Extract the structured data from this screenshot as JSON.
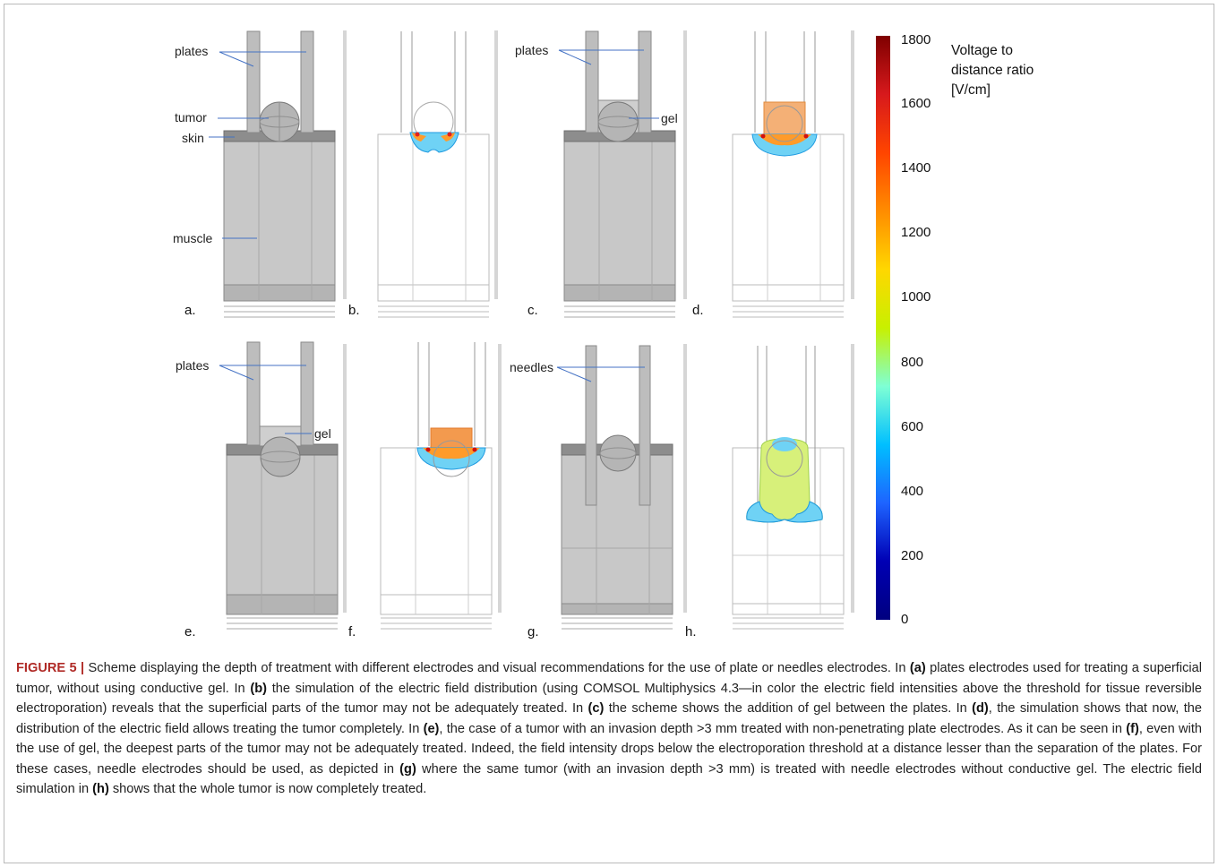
{
  "panels": {
    "a": {
      "letter": "a.",
      "labels": {
        "plates": "plates",
        "tumor": "tumor",
        "skin": "skin",
        "muscle": "muscle"
      }
    },
    "b": {
      "letter": "b."
    },
    "c": {
      "letter": "c.",
      "labels": {
        "plates": "plates",
        "gel": "gel"
      }
    },
    "d": {
      "letter": "d."
    },
    "e": {
      "letter": "e.",
      "labels": {
        "plates": "plates",
        "gel": "gel"
      }
    },
    "f": {
      "letter": "f."
    },
    "g": {
      "letter": "g.",
      "labels": {
        "needles": "needles"
      }
    },
    "h": {
      "letter": "h."
    }
  },
  "colorbar": {
    "title_lines": [
      "Voltage to",
      "distance ratio",
      "[V/cm]"
    ],
    "ticks": [
      "1800",
      "1600",
      "1400",
      "1200",
      "1000",
      "800",
      "600",
      "400",
      "200",
      "0"
    ],
    "colors": [
      "#7f0000",
      "#d7191c",
      "#ff4500",
      "#ff8c00",
      "#ffd700",
      "#c8f000",
      "#7fffd4",
      "#00bfff",
      "#1e64ff",
      "#0000b4",
      "#00007f"
    ]
  },
  "caption": {
    "label": "FIGURE 5 |",
    "segments": [
      {
        "t": " Scheme displaying the depth of treatment with different electrodes and visual recommendations for the use of plate or needles electrodes. In ",
        "b": false
      },
      {
        "t": "(a)",
        "b": true
      },
      {
        "t": " plates electrodes used for treating a superficial tumor, without using conductive gel. In ",
        "b": false
      },
      {
        "t": "(b)",
        "b": true
      },
      {
        "t": " the simulation of the electric field distribution (using COMSOL Multiphysics 4.3—in color the electric field intensities above the threshold for tissue reversible electroporation) reveals that the superficial parts of the tumor may not be adequately treated. In ",
        "b": false
      },
      {
        "t": "(c)",
        "b": true
      },
      {
        "t": " the scheme shows the addition of gel between the plates. In ",
        "b": false
      },
      {
        "t": "(d)",
        "b": true
      },
      {
        "t": ", the simulation shows that now, the distribution of the electric field allows treating the tumor completely. In ",
        "b": false
      },
      {
        "t": "(e)",
        "b": true
      },
      {
        "t": ", the case of a tumor with an invasion depth >3 mm treated with non-penetrating plate electrodes. As it can be seen in ",
        "b": false
      },
      {
        "t": "(f)",
        "b": true
      },
      {
        "t": ", even with the use of gel, the deepest parts of the tumor may not be adequately treated. Indeed, the field intensity drops below the electroporation threshold at a distance lesser than the separation of the plates. For these cases, needle electrodes should be used, as depicted in ",
        "b": false
      },
      {
        "t": "(g)",
        "b": true
      },
      {
        "t": " where the same tumor (with an invasion depth >3 mm) is treated with needle electrodes without conductive gel. The electric field simulation in ",
        "b": false
      },
      {
        "t": "(h)",
        "b": true
      },
      {
        "t": " shows that the whole tumor is now completely treated.",
        "b": false
      }
    ]
  }
}
